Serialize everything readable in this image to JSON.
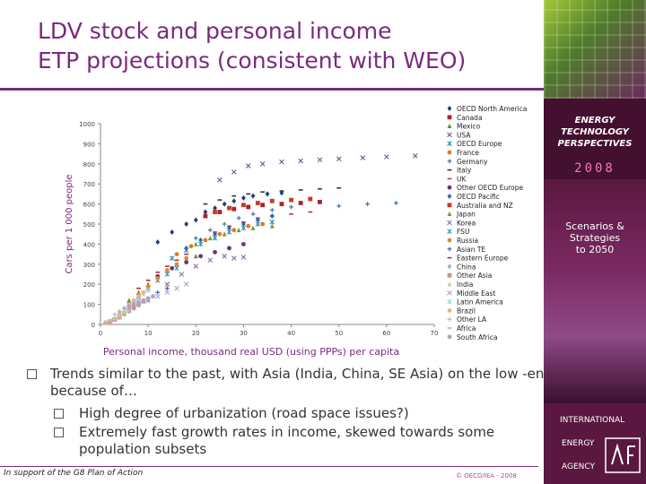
{
  "slide": {
    "title_line1": "LDV stock and personal income",
    "title_line2": "ETP projections (consistent with WEO)",
    "bullet1": "Trends similar to the past, with Asia (India, China, SE Asia) on the low -end because of…",
    "bullet2": "High degree of urbanization (road space issues?)",
    "bullet3": "Extremely fast growth rates in income, skewed towards some population subsets",
    "footer_left": "In support of the G8 Plan of Action",
    "footer_right": "© OECD/IEA - 2008"
  },
  "sidebar": {
    "etp_line1": "ENERGY",
    "etp_line2": "TECHNOLOGY",
    "etp_line3": "PERSPECTIVES",
    "year": "2008",
    "scen_line1": "Scenarios &",
    "scen_line2": "Strategies",
    "scen_line3": "to 2050",
    "iea_line1": "INTERNATIONAL",
    "iea_line2": "ENERGY",
    "iea_line3": "AGENCY"
  },
  "colors": {
    "title": "#7b2a7d",
    "sidebar": "#5a1840",
    "year": "#f07ab0"
  },
  "chart_data": {
    "type": "scatter",
    "xlabel": "Personal income, thousand real USD (using PPPs) per capita",
    "ylabel": "Cars per 1 000 people",
    "xlim": [
      0,
      70
    ],
    "ylim": [
      0,
      1000
    ],
    "xticks": [
      0,
      10,
      20,
      30,
      40,
      50,
      60,
      70
    ],
    "yticks": [
      0,
      100,
      200,
      300,
      400,
      500,
      600,
      700,
      800,
      900,
      1000
    ],
    "legend_position": "right",
    "series": [
      {
        "name": "OECD North America",
        "color": "#1f3f7a",
        "marker": "diamond",
        "points": [
          [
            20,
            520
          ],
          [
            22,
            560
          ],
          [
            24,
            580
          ],
          [
            26,
            600
          ],
          [
            28,
            615
          ],
          [
            30,
            630
          ],
          [
            32,
            640
          ],
          [
            35,
            650
          ],
          [
            38,
            655
          ],
          [
            12,
            410
          ],
          [
            15,
            460
          ],
          [
            18,
            500
          ]
        ]
      },
      {
        "name": "Canada",
        "color": "#b0202a",
        "marker": "square",
        "points": [
          [
            22,
            540
          ],
          [
            25,
            560
          ],
          [
            28,
            575
          ],
          [
            31,
            585
          ],
          [
            34,
            595
          ],
          [
            38,
            600
          ],
          [
            42,
            605
          ],
          [
            46,
            610
          ]
        ]
      },
      {
        "name": "Mexico",
        "color": "#6a8f2a",
        "marker": "triangle",
        "points": [
          [
            6,
            120
          ],
          [
            8,
            160
          ],
          [
            10,
            200
          ],
          [
            12,
            240
          ],
          [
            14,
            270
          ],
          [
            16,
            300
          ],
          [
            18,
            320
          ],
          [
            20,
            340
          ]
        ]
      },
      {
        "name": "USA",
        "color": "#6a5a9a",
        "marker": "x",
        "points": [
          [
            25,
            720
          ],
          [
            28,
            760
          ],
          [
            31,
            790
          ],
          [
            34,
            800
          ],
          [
            38,
            810
          ],
          [
            42,
            815
          ],
          [
            46,
            820
          ],
          [
            50,
            825
          ],
          [
            55,
            830
          ],
          [
            60,
            835
          ],
          [
            66,
            840
          ]
        ]
      },
      {
        "name": "OECD Europe",
        "color": "#2a8fb0",
        "marker": "star",
        "points": [
          [
            15,
            330
          ],
          [
            18,
            370
          ],
          [
            21,
            400
          ],
          [
            24,
            430
          ],
          [
            27,
            460
          ],
          [
            30,
            480
          ],
          [
            33,
            500
          ],
          [
            36,
            510
          ]
        ]
      },
      {
        "name": "France",
        "color": "#e07a20",
        "marker": "circle",
        "points": [
          [
            16,
            350
          ],
          [
            19,
            390
          ],
          [
            22,
            420
          ],
          [
            25,
            450
          ],
          [
            28,
            470
          ],
          [
            31,
            490
          ],
          [
            34,
            500
          ]
        ]
      },
      {
        "name": "Germany",
        "color": "#3a6aa0",
        "marker": "plus",
        "points": [
          [
            20,
            430
          ],
          [
            23,
            470
          ],
          [
            26,
            500
          ],
          [
            29,
            530
          ],
          [
            32,
            550
          ],
          [
            36,
            570
          ],
          [
            40,
            585
          ],
          [
            50,
            590
          ],
          [
            56,
            600
          ],
          [
            62,
            605
          ]
        ]
      },
      {
        "name": "Italy",
        "color": "#333333",
        "marker": "dash",
        "points": [
          [
            22,
            600
          ],
          [
            25,
            620
          ],
          [
            28,
            640
          ],
          [
            31,
            650
          ],
          [
            34,
            660
          ],
          [
            38,
            665
          ],
          [
            42,
            670
          ],
          [
            46,
            675
          ],
          [
            50,
            680
          ]
        ]
      },
      {
        "name": "UK",
        "color": "#c03060",
        "marker": "dash",
        "points": [
          [
            24,
            460
          ],
          [
            27,
            490
          ],
          [
            30,
            510
          ],
          [
            33,
            530
          ],
          [
            36,
            540
          ],
          [
            40,
            550
          ],
          [
            44,
            560
          ]
        ]
      },
      {
        "name": "Other OECD Europe",
        "color": "#6a3080",
        "marker": "circle",
        "points": [
          [
            12,
            240
          ],
          [
            15,
            280
          ],
          [
            18,
            310
          ],
          [
            21,
            340
          ],
          [
            24,
            360
          ],
          [
            27,
            380
          ],
          [
            30,
            400
          ]
        ]
      },
      {
        "name": "OECD Pacific",
        "color": "#2a6ab0",
        "marker": "diamond",
        "points": [
          [
            18,
            380
          ],
          [
            21,
            420
          ],
          [
            24,
            450
          ],
          [
            27,
            480
          ],
          [
            30,
            500
          ],
          [
            33,
            520
          ],
          [
            36,
            540
          ]
        ]
      },
      {
        "name": "Australia and NZ",
        "color": "#c04020",
        "marker": "square",
        "points": [
          [
            24,
            560
          ],
          [
            27,
            580
          ],
          [
            30,
            595
          ],
          [
            33,
            605
          ],
          [
            36,
            615
          ],
          [
            40,
            620
          ],
          [
            44,
            625
          ]
        ]
      },
      {
        "name": "Japan",
        "color": "#7a9a30",
        "marker": "triangle",
        "points": [
          [
            20,
            400
          ],
          [
            23,
            430
          ],
          [
            26,
            450
          ],
          [
            29,
            470
          ],
          [
            32,
            480
          ],
          [
            36,
            490
          ]
        ]
      },
      {
        "name": "Korea",
        "color": "#8a6aaa",
        "marker": "x",
        "points": [
          [
            14,
            200
          ],
          [
            17,
            250
          ],
          [
            20,
            290
          ],
          [
            23,
            320
          ],
          [
            26,
            340
          ],
          [
            28,
            330
          ],
          [
            30,
            335
          ]
        ]
      },
      {
        "name": "FSU",
        "color": "#3a9ac0",
        "marker": "star",
        "points": [
          [
            6,
            100
          ],
          [
            8,
            140
          ],
          [
            10,
            180
          ],
          [
            12,
            220
          ],
          [
            14,
            250
          ],
          [
            16,
            280
          ]
        ]
      },
      {
        "name": "Russia",
        "color": "#e08a30",
        "marker": "circle",
        "points": [
          [
            8,
            150
          ],
          [
            10,
            190
          ],
          [
            12,
            230
          ],
          [
            14,
            270
          ],
          [
            16,
            300
          ],
          [
            18,
            330
          ]
        ]
      },
      {
        "name": "Asian TE",
        "color": "#3060a0",
        "marker": "plus",
        "points": [
          [
            4,
            40
          ],
          [
            6,
            70
          ],
          [
            8,
            100
          ],
          [
            10,
            130
          ],
          [
            12,
            160
          ],
          [
            14,
            180
          ]
        ]
      },
      {
        "name": "Eastern Europe",
        "color": "#a03050",
        "marker": "dash",
        "points": [
          [
            8,
            180
          ],
          [
            10,
            220
          ],
          [
            12,
            260
          ],
          [
            14,
            290
          ],
          [
            16,
            320
          ],
          [
            18,
            350
          ]
        ]
      },
      {
        "name": "China",
        "color": "#9ab0d0",
        "marker": "diamond",
        "points": [
          [
            1,
            10
          ],
          [
            2,
            15
          ],
          [
            3,
            25
          ],
          [
            4,
            35
          ],
          [
            5,
            50
          ],
          [
            6,
            65
          ],
          [
            7,
            80
          ],
          [
            8,
            95
          ],
          [
            10,
            120
          ]
        ]
      },
      {
        "name": "Other Asia",
        "color": "#d09090",
        "marker": "square",
        "points": [
          [
            2,
            15
          ],
          [
            3,
            25
          ],
          [
            4,
            40
          ],
          [
            5,
            55
          ],
          [
            6,
            70
          ],
          [
            7,
            85
          ],
          [
            8,
            100
          ],
          [
            9,
            115
          ]
        ]
      },
      {
        "name": "India",
        "color": "#c0d090",
        "marker": "triangle",
        "points": [
          [
            1,
            8
          ],
          [
            1.5,
            12
          ],
          [
            2,
            18
          ],
          [
            2.5,
            25
          ],
          [
            3,
            32
          ],
          [
            4,
            45
          ],
          [
            5,
            60
          ],
          [
            6,
            75
          ]
        ]
      },
      {
        "name": "Middle East",
        "color": "#b0a0c8",
        "marker": "x",
        "points": [
          [
            6,
            80
          ],
          [
            8,
            100
          ],
          [
            10,
            120
          ],
          [
            12,
            140
          ],
          [
            14,
            160
          ],
          [
            16,
            180
          ],
          [
            18,
            200
          ]
        ]
      },
      {
        "name": "Latin America",
        "color": "#a0d0e0",
        "marker": "star",
        "points": [
          [
            5,
            70
          ],
          [
            6,
            90
          ],
          [
            7,
            110
          ],
          [
            8,
            130
          ],
          [
            9,
            150
          ],
          [
            10,
            170
          ]
        ]
      },
      {
        "name": "Brazil",
        "color": "#f0b080",
        "marker": "circle",
        "points": [
          [
            4,
            60
          ],
          [
            5,
            80
          ],
          [
            6,
            100
          ],
          [
            7,
            120
          ],
          [
            8,
            140
          ],
          [
            9,
            160
          ]
        ]
      },
      {
        "name": "Other LA",
        "color": "#a0b8d8",
        "marker": "plus",
        "points": [
          [
            3,
            50
          ],
          [
            4,
            65
          ],
          [
            5,
            80
          ],
          [
            6,
            95
          ],
          [
            7,
            110
          ],
          [
            8,
            125
          ]
        ]
      },
      {
        "name": "Africa",
        "color": "#d0a0b0",
        "marker": "dash",
        "points": [
          [
            1,
            5
          ],
          [
            1.5,
            8
          ],
          [
            2,
            12
          ],
          [
            2.5,
            16
          ],
          [
            3,
            20
          ],
          [
            4,
            28
          ]
        ]
      },
      {
        "name": "South Africa",
        "color": "#b0a0c0",
        "marker": "circle",
        "points": [
          [
            6,
            90
          ],
          [
            7,
            100
          ],
          [
            8,
            110
          ],
          [
            9,
            120
          ],
          [
            10,
            130
          ],
          [
            11,
            140
          ]
        ]
      }
    ]
  }
}
